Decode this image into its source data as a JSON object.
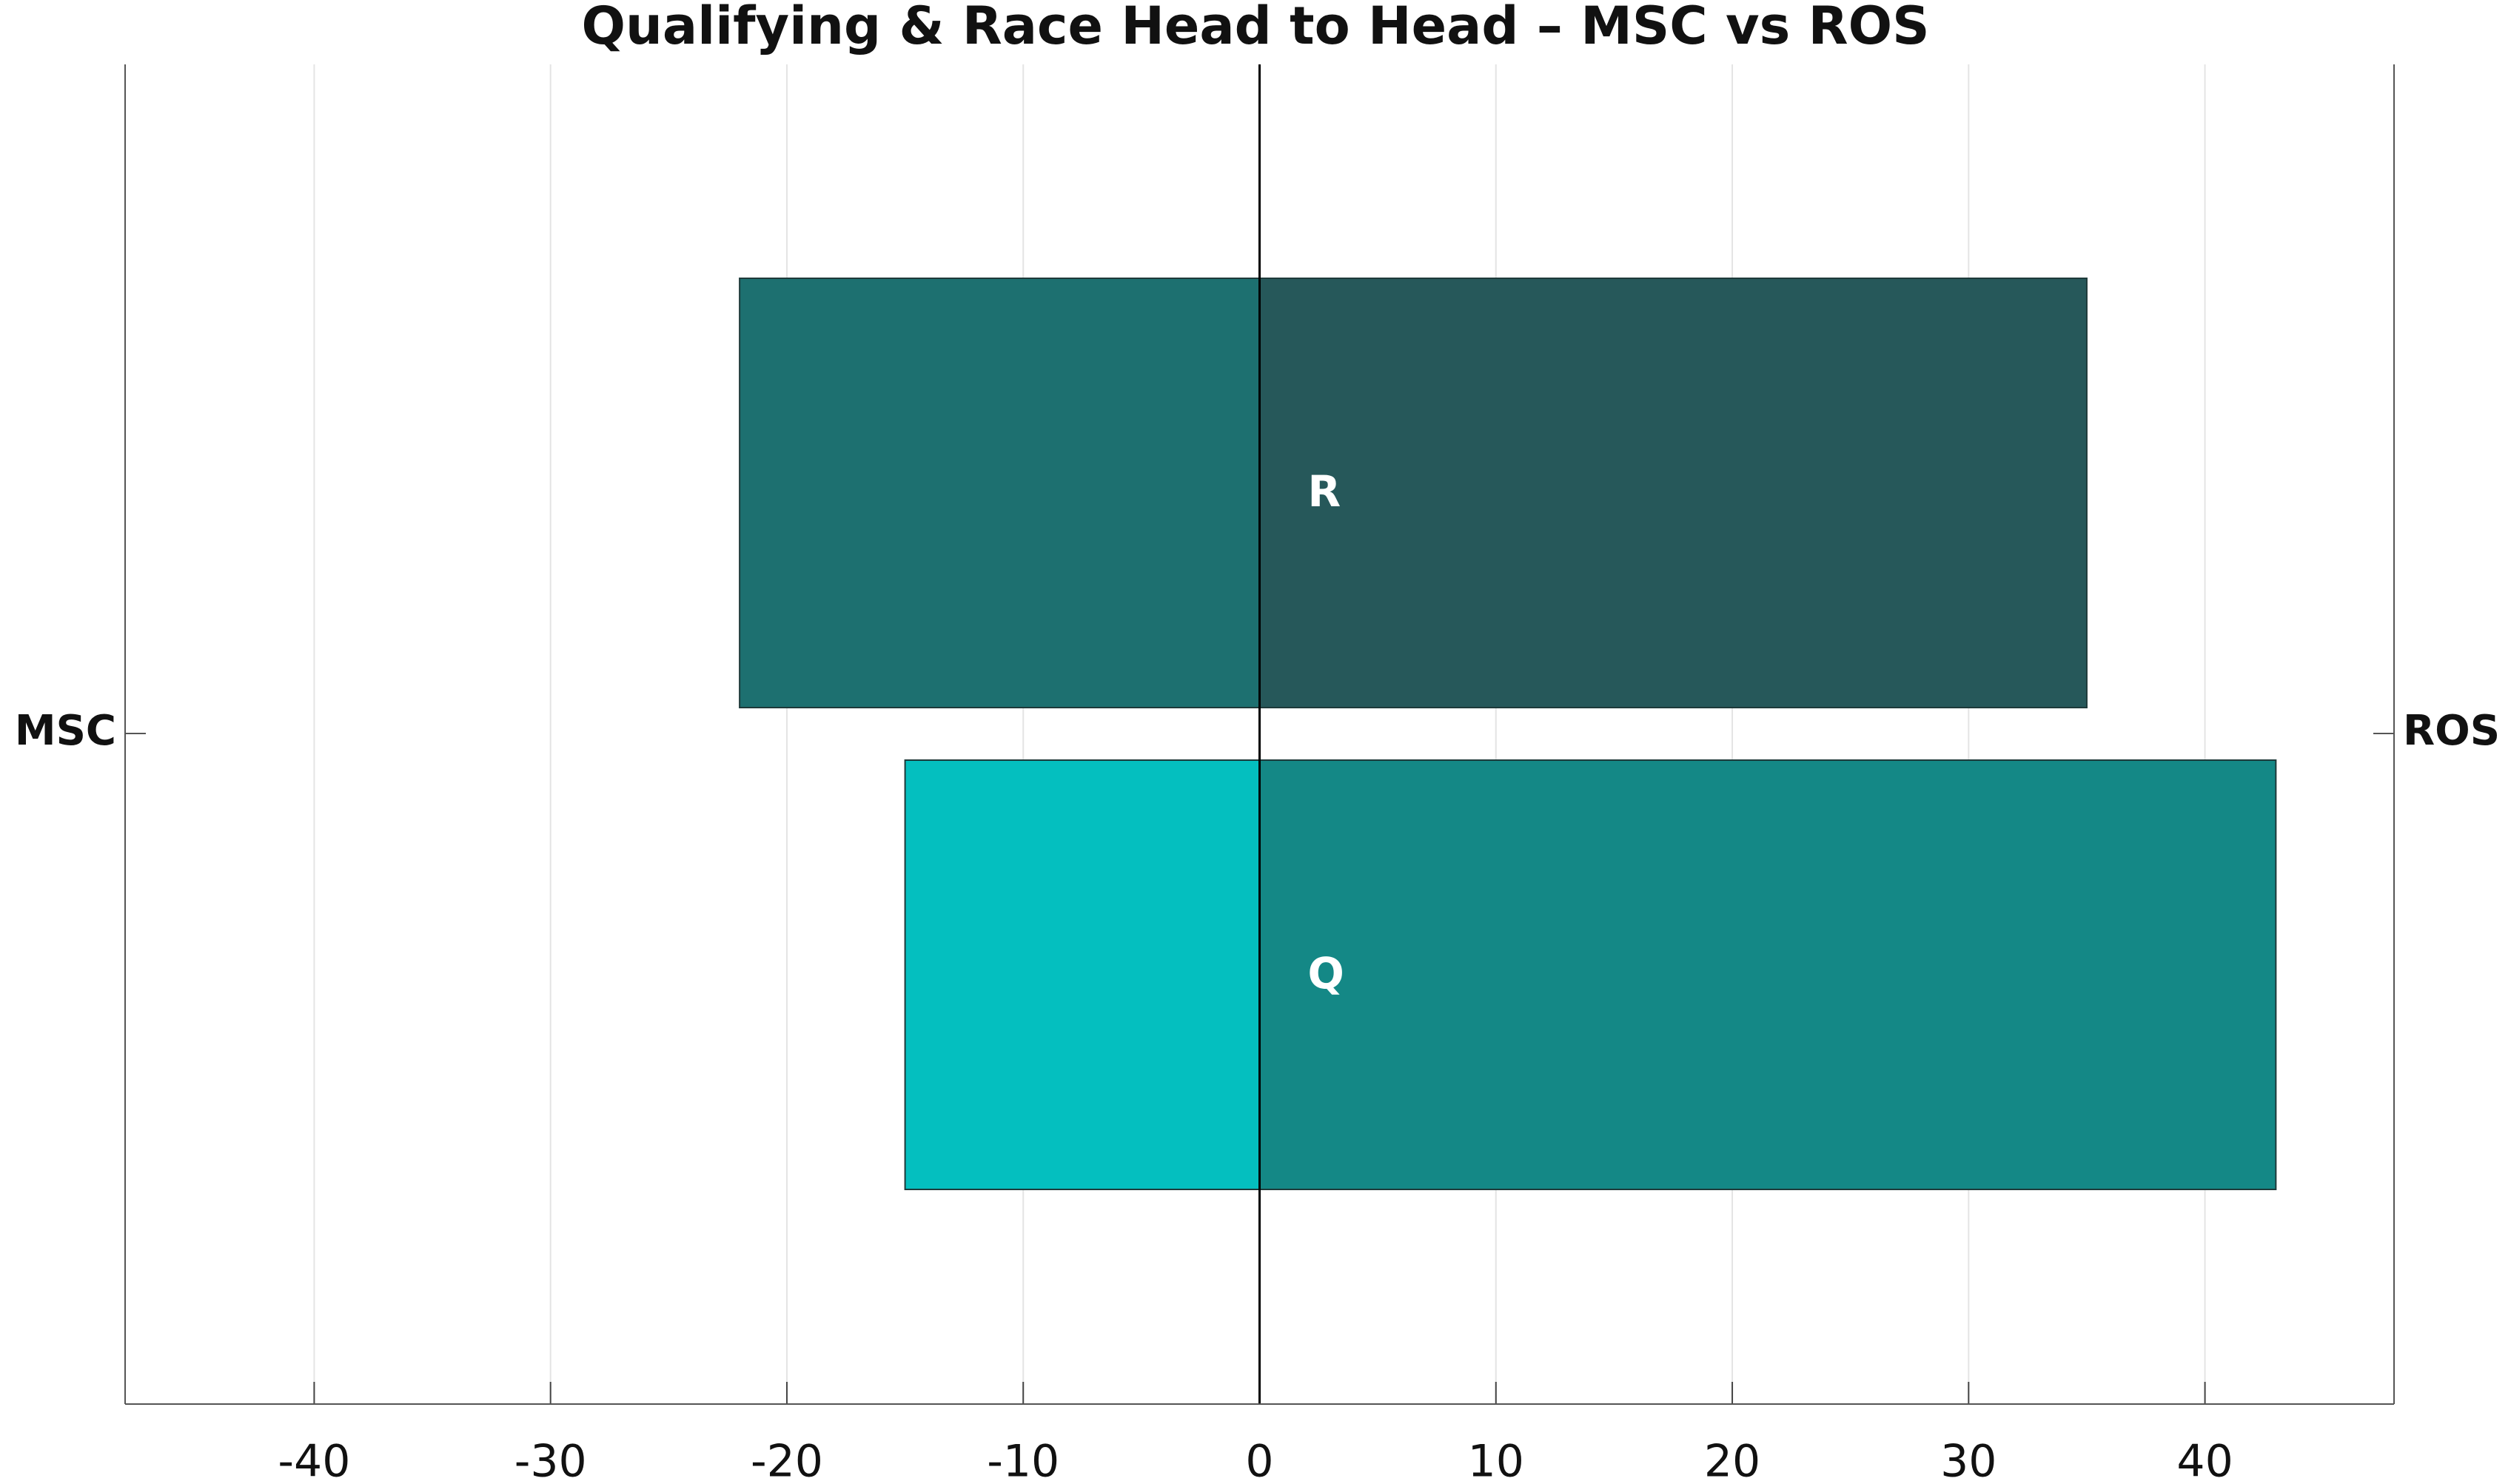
{
  "chart_data": {
    "type": "diverging-bar",
    "title": "Qualifying & Race Head to Head – MSC vs ROS",
    "categories": [
      "R",
      "Q"
    ],
    "series": [
      {
        "name": "MSC",
        "values": [
          -22,
          -15
        ],
        "colors": [
          "#1d7070",
          "#04bfbf"
        ]
      },
      {
        "name": "ROS",
        "values": [
          35,
          43
        ],
        "colors": [
          "#26585a",
          "#148886"
        ]
      }
    ],
    "xlim": [
      -48,
      48
    ],
    "xticks": [
      -40,
      -30,
      -20,
      -10,
      0,
      10,
      20,
      30,
      40
    ],
    "grid": true
  }
}
